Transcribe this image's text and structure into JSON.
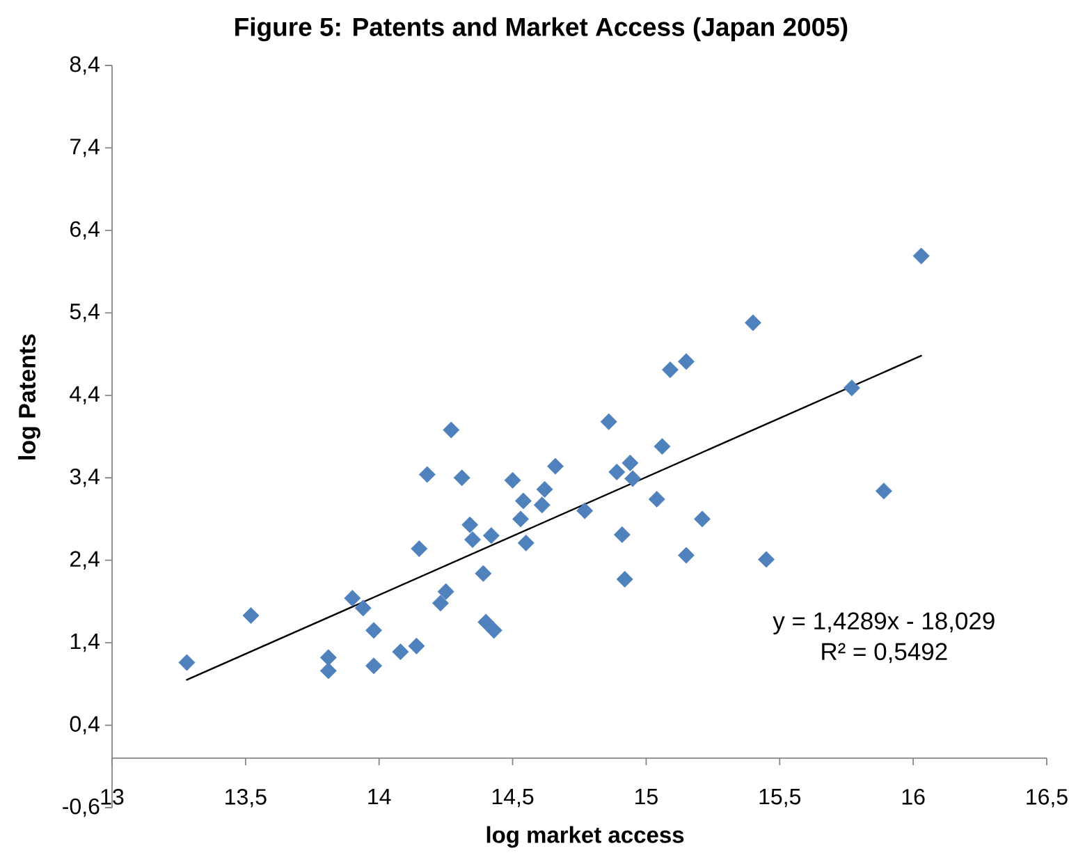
{
  "chart_data": {
    "type": "scatter",
    "title": "Figure 5: Patents and Market Access (Japan 2005)",
    "xlabel": "log market access",
    "ylabel": "log Patents",
    "xlim": [
      13,
      16.5
    ],
    "ylim": [
      -0.6,
      8.4
    ],
    "xticks": [
      13,
      {
        "value": 13.5,
        "label": "13,5"
      },
      14,
      {
        "value": 14.5,
        "label": "14,5"
      },
      15,
      {
        "value": 15.5,
        "label": "15,5"
      },
      16,
      {
        "value": 16.5,
        "label": "16,5"
      }
    ],
    "yticks": [
      {
        "value": -0.6,
        "label": "-0,6"
      },
      {
        "value": 0.4,
        "label": "0,4"
      },
      {
        "value": 1.4,
        "label": "1,4"
      },
      {
        "value": 2.4,
        "label": "2,4"
      },
      {
        "value": 3.4,
        "label": "3,4"
      },
      {
        "value": 4.4,
        "label": "4,4"
      },
      {
        "value": 5.4,
        "label": "5,4"
      },
      {
        "value": 6.4,
        "label": "6,4"
      },
      {
        "value": 7.4,
        "label": "7,4"
      },
      {
        "value": 8.4,
        "label": "8,4"
      }
    ],
    "grid": false,
    "legend": false,
    "series": [
      {
        "type": "scatter",
        "color": "#4f81bd",
        "marker": "diamond",
        "x": [
          13.28,
          13.52,
          13.81,
          13.81,
          13.9,
          13.94,
          13.98,
          13.98,
          14.08,
          14.14,
          14.15,
          14.18,
          14.23,
          14.25,
          14.27,
          14.31,
          14.34,
          14.35,
          14.39,
          14.4,
          14.42,
          14.43,
          14.5,
          14.53,
          14.54,
          14.55,
          14.61,
          14.62,
          14.66,
          14.77,
          14.86,
          14.89,
          14.94,
          14.95,
          14.91,
          14.92,
          15.06,
          15.04,
          15.09,
          15.15,
          15.21,
          15.15,
          15.4,
          15.45,
          15.77,
          15.89,
          16.03
        ],
        "values": [
          1.16,
          1.73,
          1.22,
          1.06,
          1.94,
          1.82,
          1.55,
          1.12,
          1.29,
          1.36,
          2.54,
          3.44,
          1.88,
          2.02,
          3.98,
          3.4,
          2.83,
          2.65,
          2.24,
          1.65,
          2.7,
          1.55,
          3.37,
          2.9,
          3.12,
          2.61,
          3.07,
          3.26,
          3.54,
          3.0,
          4.08,
          3.47,
          3.58,
          3.39,
          2.71,
          2.17,
          3.78,
          3.14,
          4.71,
          4.81,
          2.9,
          2.46,
          5.28,
          2.41,
          4.49,
          3.24,
          6.09
        ]
      },
      {
        "type": "line",
        "color": "#000000",
        "x": [
          13.28,
          16.03
        ],
        "values": [
          0.95,
          4.88
        ]
      }
    ],
    "annotations": [
      "y = 1,4289x - 18,029",
      "R² = 0,5492"
    ]
  }
}
